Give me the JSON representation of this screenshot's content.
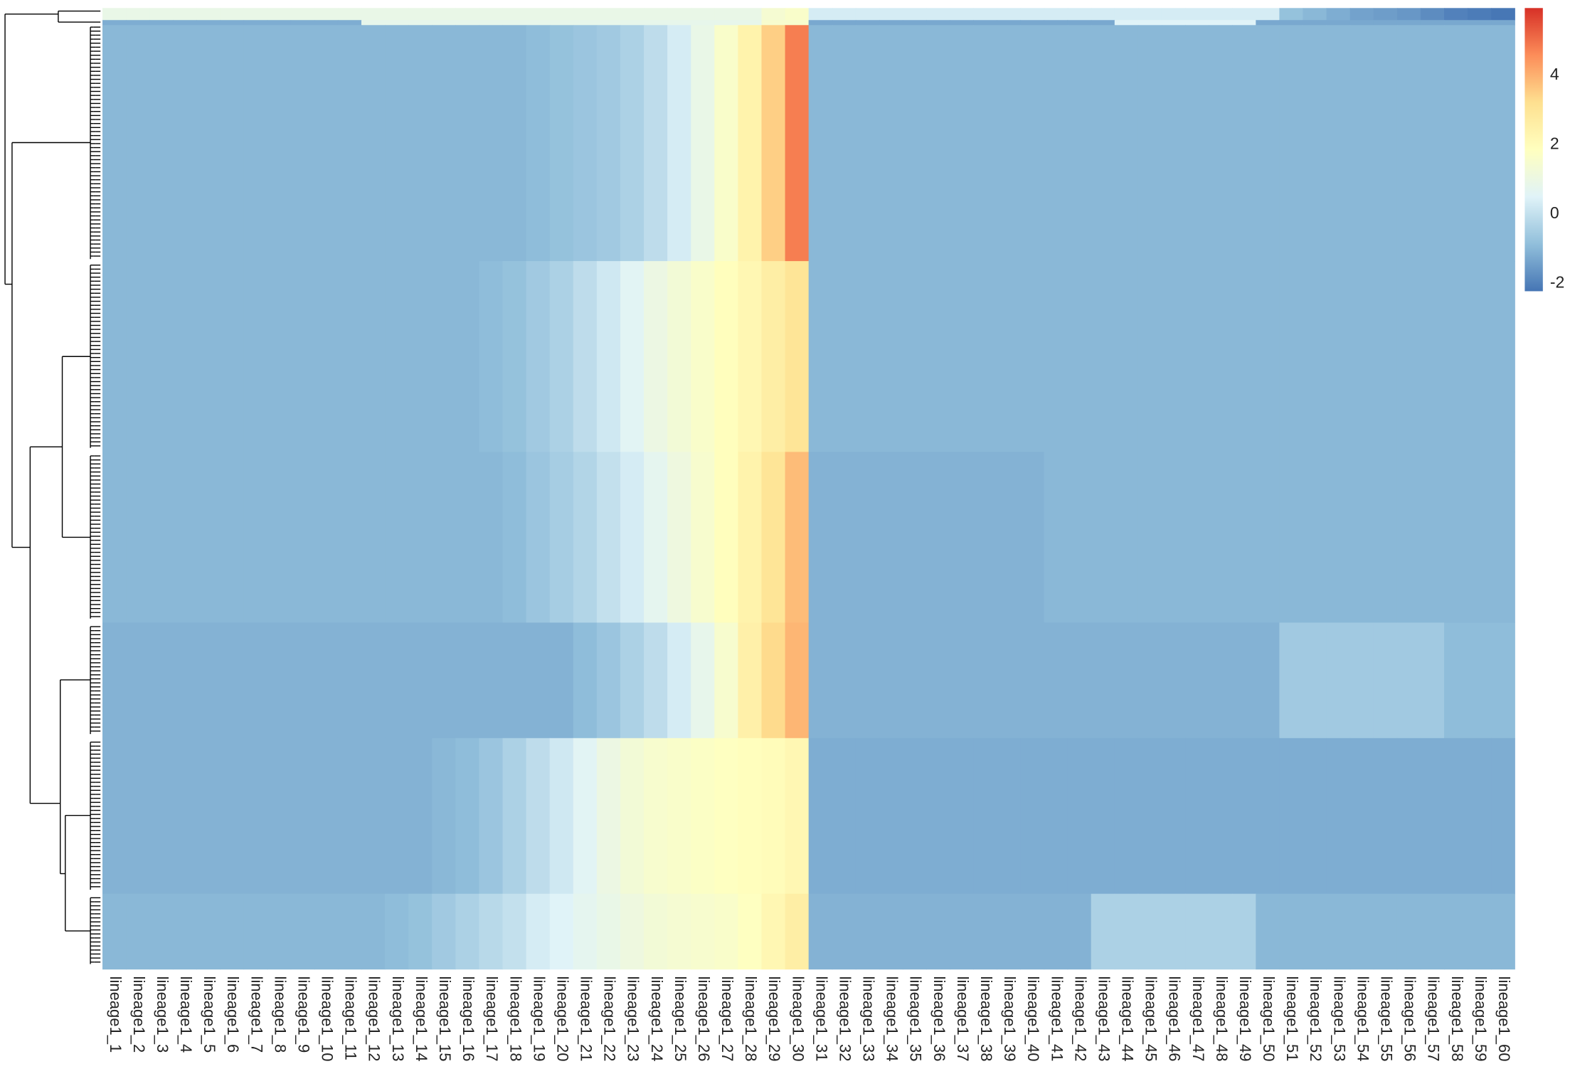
{
  "chart_data": {
    "type": "heatmap",
    "columns": [
      "lineage1_1",
      "lineage1_2",
      "lineage1_3",
      "lineage1_4",
      "lineage1_5",
      "lineage1_6",
      "lineage1_7",
      "lineage1_8",
      "lineage1_9",
      "lineage1_10",
      "lineage1_11",
      "lineage1_12",
      "lineage1_13",
      "lineage1_14",
      "lineage1_15",
      "lineage1_16",
      "lineage1_17",
      "lineage1_18",
      "lineage1_19",
      "lineage1_20",
      "lineage1_21",
      "lineage1_22",
      "lineage1_23",
      "lineage1_24",
      "lineage1_25",
      "lineage1_26",
      "lineage1_27",
      "lineage1_28",
      "lineage1_29",
      "lineage1_30",
      "lineage1_31",
      "lineage1_32",
      "lineage1_33",
      "lineage1_34",
      "lineage1_35",
      "lineage1_36",
      "lineage1_37",
      "lineage1_38",
      "lineage1_39",
      "lineage1_40",
      "lineage1_41",
      "lineage1_42",
      "lineage1_43",
      "lineage1_44",
      "lineage1_45",
      "lineage1_46",
      "lineage1_47",
      "lineage1_48",
      "lineage1_49",
      "lineage1_50",
      "lineage1_51",
      "lineage1_52",
      "lineage1_53",
      "lineage1_54",
      "lineage1_55",
      "lineage1_56",
      "lineage1_57",
      "lineage1_58",
      "lineage1_59",
      "lineage1_60"
    ],
    "z": [
      [
        0.9,
        0.9,
        0.9,
        0.9,
        0.9,
        0.9,
        0.9,
        0.9,
        0.9,
        0.9,
        0.9,
        0.9,
        0.9,
        0.9,
        0.9,
        0.9,
        0.9,
        0.9,
        0.9,
        0.9,
        0.9,
        0.9,
        0.9,
        0.9,
        0.9,
        0.9,
        0.9,
        0.9,
        1.4,
        1.6,
        0.3,
        0.3,
        0.3,
        0.3,
        0.3,
        0.3,
        0.3,
        0.3,
        0.3,
        0.3,
        0.3,
        0.3,
        0.3,
        0.3,
        0.3,
        0.3,
        0.3,
        0.3,
        0.3,
        0.3,
        -0.8,
        -1,
        -1.2,
        -1.4,
        -1.5,
        -1.6,
        -1.8,
        -2,
        -2.1,
        -2.2
      ],
      [
        -1.2,
        -1.2,
        -1.2,
        -1.2,
        -1.2,
        -1.2,
        -1.2,
        -1.2,
        -1.2,
        -1.2,
        -1.2,
        0.8,
        0.8,
        0.8,
        0.8,
        0.8,
        0.8,
        0.8,
        0.8,
        0.8,
        0.8,
        0.8,
        0.8,
        0.8,
        0.8,
        0.8,
        0.8,
        0.8,
        1.5,
        1.5,
        -1.3,
        -1.3,
        -1.3,
        -1.3,
        -1.3,
        -1.3,
        -1.3,
        -1.3,
        -1.3,
        -1.3,
        -1.3,
        -1.3,
        -1.3,
        0.5,
        0.5,
        0.5,
        0.5,
        0.5,
        0.5,
        -1.3,
        -1.3,
        -1.3,
        -1.3,
        -1.3,
        -1.3,
        -1.3,
        -1.3,
        -1.3,
        -1.3,
        -1.3
      ],
      [
        -1,
        -1,
        -1,
        -1,
        -1,
        -1,
        -1,
        -1,
        -1,
        -1,
        -1,
        -1,
        -1,
        -1,
        -1,
        -1,
        -1,
        -1,
        -0.9,
        -0.8,
        -0.7,
        -0.6,
        -0.4,
        -0.1,
        0.3,
        0.9,
        1.6,
        2.4,
        3.5,
        4.8,
        -1,
        -1,
        -1,
        -1,
        -1,
        -1,
        -1,
        -1,
        -1,
        -1,
        -1,
        -1,
        -1,
        -1,
        -1,
        -1,
        -1,
        -1,
        -1,
        -1,
        -1,
        -1,
        -1,
        -1,
        -1,
        -1,
        -1,
        -1,
        -1,
        -1
      ],
      [
        -1,
        -1,
        -1,
        -1,
        -1,
        -1,
        -1,
        -1,
        -1,
        -1,
        -1,
        -1,
        -1,
        -1,
        -1,
        -1,
        -0.9,
        -0.8,
        -0.6,
        -0.4,
        -0.1,
        0.2,
        0.6,
        1,
        1.3,
        1.6,
        1.9,
        2.2,
        2.6,
        3,
        -1,
        -1,
        -1,
        -1,
        -1,
        -1,
        -1,
        -1,
        -1,
        -1,
        -1,
        -1,
        -1,
        -1,
        -1,
        -1,
        -1,
        -1,
        -1,
        -1,
        -1,
        -1,
        -1,
        -1,
        -1,
        -1,
        -1,
        -1,
        -1,
        -1
      ],
      [
        -1,
        -1,
        -1,
        -1,
        -1,
        -1,
        -1,
        -1,
        -1,
        -1,
        -1,
        -1,
        -1,
        -1,
        -1,
        -1,
        -1,
        -0.9,
        -0.7,
        -0.5,
        -0.3,
        0,
        0.3,
        0.7,
        1.1,
        1.5,
        1.9,
        2.4,
        3,
        3.8,
        -1.1,
        -1.1,
        -1.1,
        -1.1,
        -1.1,
        -1.1,
        -1.1,
        -1.1,
        -1.1,
        -1.1,
        -1,
        -1,
        -1,
        -1,
        -1,
        -1,
        -1,
        -1,
        -1,
        -1,
        -1,
        -1,
        -1,
        -1,
        -1,
        -1,
        -1,
        -1,
        -1,
        -1
      ],
      [
        -1.1,
        -1.1,
        -1.1,
        -1.1,
        -1.1,
        -1.1,
        -1.1,
        -1.1,
        -1.1,
        -1.1,
        -1.1,
        -1.1,
        -1.1,
        -1.1,
        -1.1,
        -1.1,
        -1.1,
        -1.1,
        -1.1,
        -1.1,
        -0.9,
        -0.7,
        -0.4,
        -0.1,
        0.3,
        0.8,
        1.5,
        2.5,
        3.3,
        3.9,
        -1.1,
        -1.1,
        -1.1,
        -1.1,
        -1.1,
        -1.1,
        -1.1,
        -1.1,
        -1.1,
        -1.1,
        -1.1,
        -1.1,
        -1.1,
        -1.1,
        -1.1,
        -1.1,
        -1.1,
        -1.1,
        -1.1,
        -1.1,
        -0.6,
        -0.6,
        -0.6,
        -0.6,
        -0.6,
        -0.6,
        -0.6,
        -0.9,
        -0.9,
        -0.9
      ],
      [
        -1.1,
        -1.1,
        -1.1,
        -1.1,
        -1.1,
        -1.1,
        -1.1,
        -1.1,
        -1.1,
        -1.1,
        -1.1,
        -1.1,
        -1.1,
        -1.1,
        -1,
        -0.9,
        -0.7,
        -0.4,
        -0.1,
        0.2,
        0.6,
        1,
        1.3,
        1.5,
        1.6,
        1.7,
        1.8,
        1.9,
        2,
        2.2,
        -1.2,
        -1.2,
        -1.2,
        -1.2,
        -1.2,
        -1.2,
        -1.2,
        -1.2,
        -1.2,
        -1.2,
        -1.2,
        -1.2,
        -1.2,
        -1.2,
        -1.2,
        -1.2,
        -1.2,
        -1.2,
        -1.2,
        -1.2,
        -1.2,
        -1.2,
        -1.2,
        -1.2,
        -1.2,
        -1.2,
        -1.2,
        -1.2,
        -1.2,
        -1.2
      ],
      [
        -1,
        -1,
        -1,
        -1,
        -1,
        -1,
        -1,
        -1,
        -1,
        -1,
        -1,
        -1,
        -0.9,
        -0.8,
        -0.6,
        -0.4,
        -0.2,
        0,
        0.3,
        0.5,
        0.7,
        0.9,
        1.1,
        1.3,
        1.4,
        1.5,
        1.6,
        1.8,
        2.2,
        2.6,
        -1.1,
        -1.1,
        -1.1,
        -1.1,
        -1.1,
        -1.1,
        -1.1,
        -1.1,
        -1.1,
        -1.1,
        -1.1,
        -1.1,
        -0.4,
        -0.4,
        -0.4,
        -0.4,
        -0.4,
        -0.4,
        -0.4,
        -1,
        -1,
        -1,
        -1,
        -1,
        -1,
        -1,
        -1,
        -1,
        -1,
        -1
      ]
    ],
    "colors": [
      "#4575b4",
      "#91bfdb",
      "#e0f3f8",
      "#ffffbf",
      "#fee090",
      "#fc8d59",
      "#d73027"
    ],
    "zlim": [
      -2.23,
      5.94
    ],
    "colorbar_ticks": [
      -2,
      0,
      2,
      4
    ]
  }
}
